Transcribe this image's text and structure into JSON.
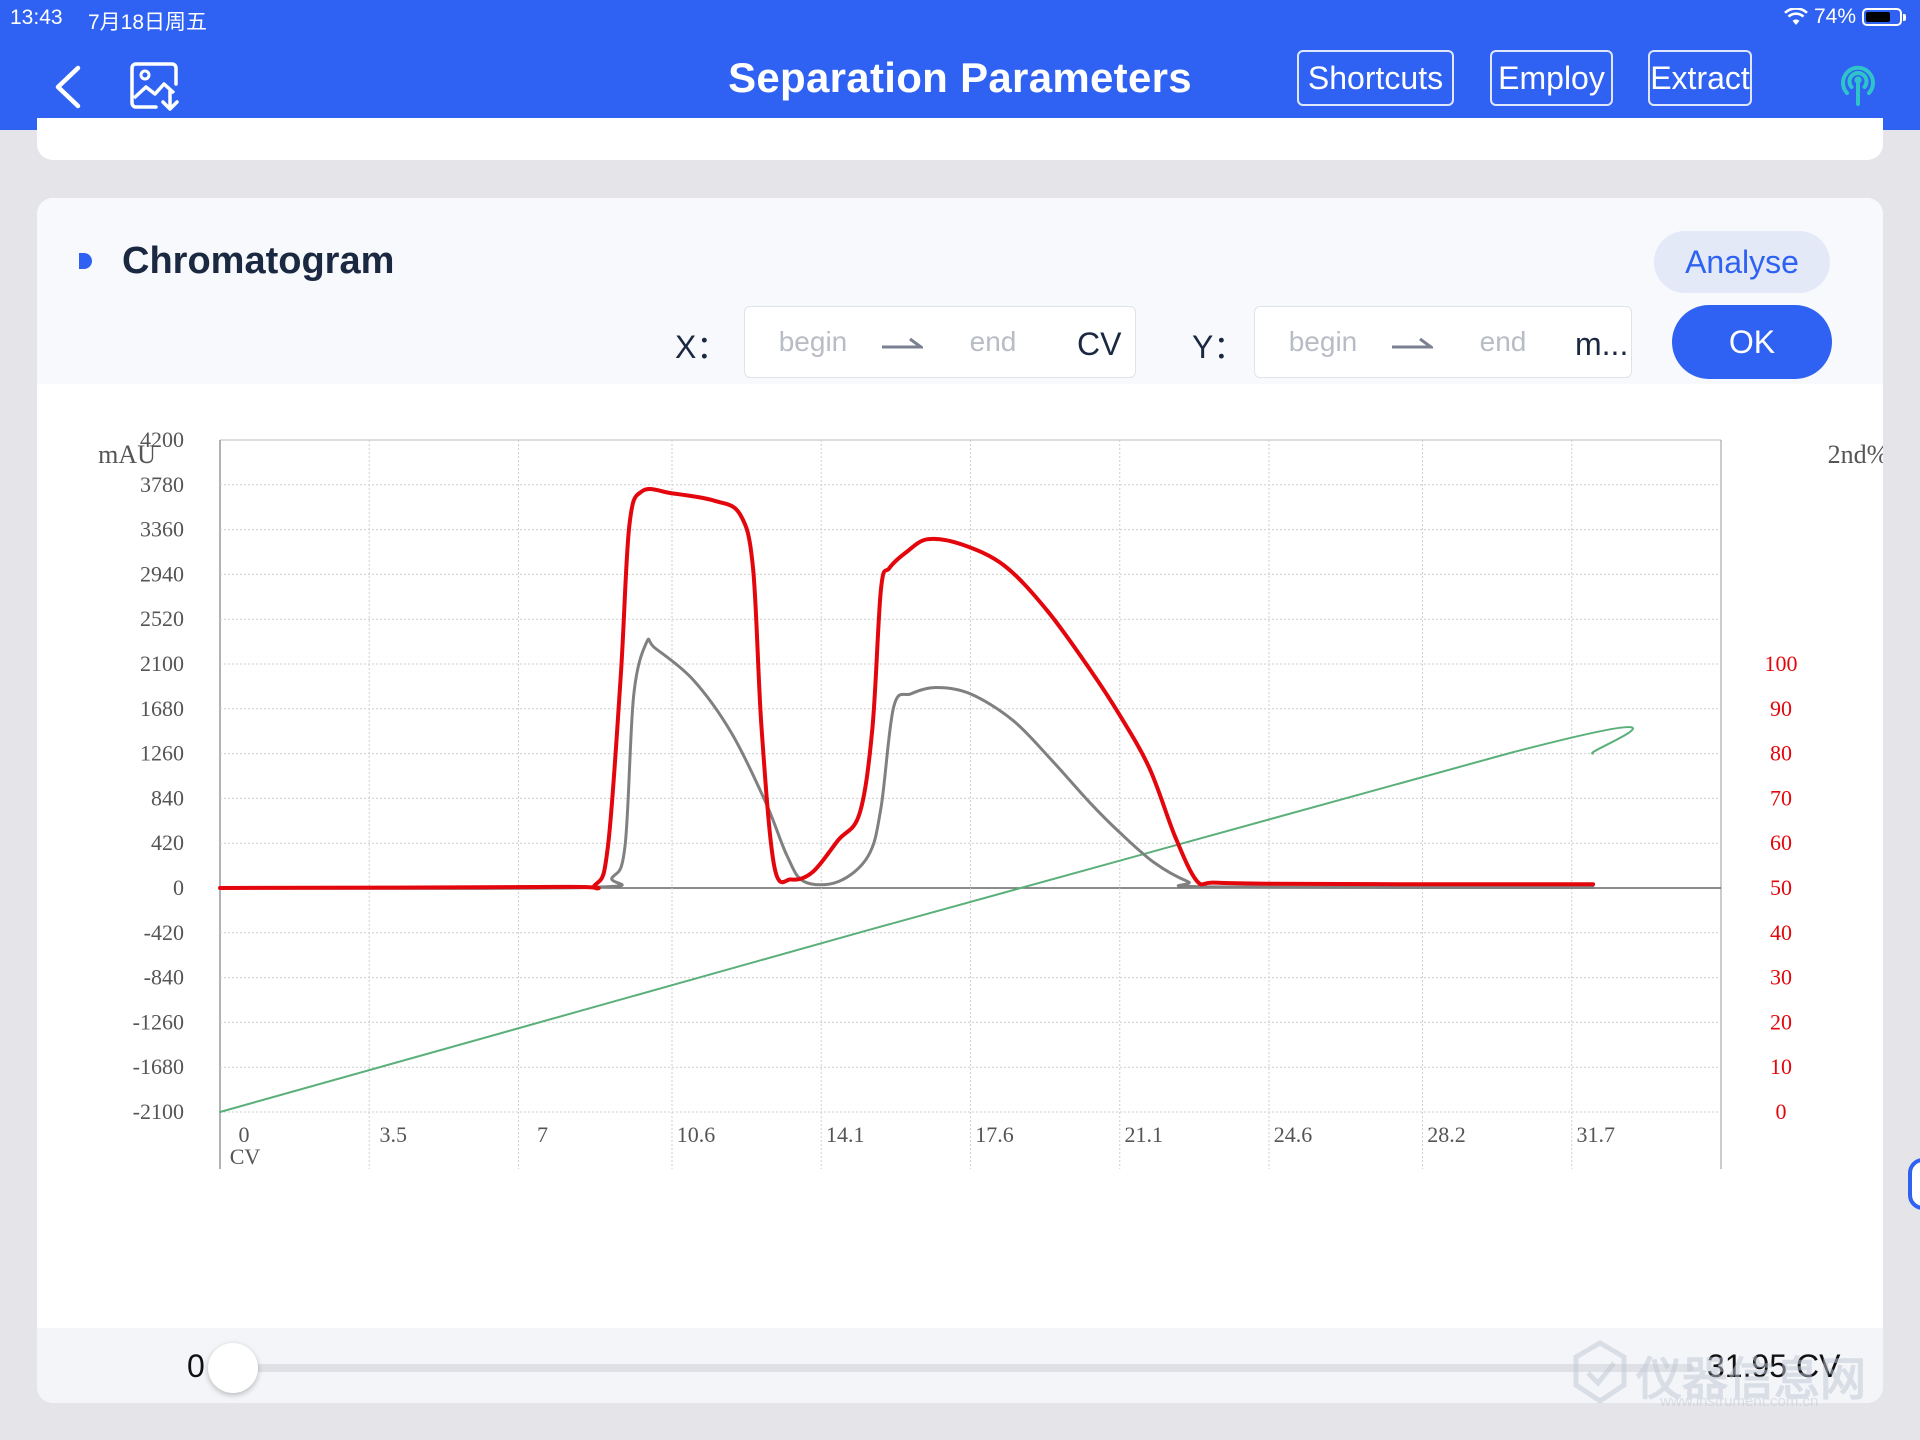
{
  "status_bar": {
    "time": "13:43",
    "date": "7月18日周五",
    "battery": "74%",
    "battery_level": 0.74
  },
  "header": {
    "title": "Separation Parameters",
    "buttons": {
      "shortcuts": "Shortcuts",
      "employ": "Employ",
      "extract": "Extract"
    }
  },
  "chromatogram": {
    "title": "Chromatogram",
    "analyse_label": "Analyse",
    "x_range": {
      "label": "X：",
      "begin_placeholder": "begin",
      "end_placeholder": "end",
      "unit": "CV"
    },
    "y_range": {
      "label": "Y：",
      "begin_placeholder": "begin",
      "end_placeholder": "end",
      "unit": "m..."
    },
    "ok_label": "OK"
  },
  "slider": {
    "min_label": "0",
    "max_label": "31.95 CV",
    "value": 0
  },
  "watermark": {
    "text": "仪器信息网",
    "sub": "www.instrument.com.cn"
  },
  "colors": {
    "accent": "#2f62f2",
    "uv_curve": "#e3060c",
    "uv2_curve": "#808080",
    "gradient": "#5bb07a"
  },
  "chart_data": {
    "type": "line",
    "xlabel": "CV",
    "ylabel": "mAU",
    "y2label": "2nd%",
    "x_ticks": [
      "0",
      "3.5",
      "7",
      "10.6",
      "14.1",
      "17.6",
      "21.1",
      "24.6",
      "28.2",
      "31.7"
    ],
    "y_ticks": [
      "4200",
      "3780",
      "3360",
      "2940",
      "2520",
      "2100",
      "1680",
      "1260",
      "840",
      "420",
      "0",
      "-420",
      "-840",
      "-1260",
      "-1680",
      "-2100"
    ],
    "y2_ticks": [
      "100",
      "90",
      "80",
      "70",
      "60",
      "50",
      "40",
      "30",
      "20",
      "10",
      "0"
    ],
    "xlim": [
      0,
      35.2
    ],
    "ylim": [
      -2100,
      4200
    ],
    "y2lim": [
      0,
      100
    ],
    "grid": true,
    "series": [
      {
        "color": "#e3060c",
        "axis": "left",
        "width": 4,
        "points": [
          [
            0,
            0
          ],
          [
            8,
            10
          ],
          [
            8.8,
            30
          ],
          [
            9.1,
            400
          ],
          [
            9.4,
            2000
          ],
          [
            9.6,
            3400
          ],
          [
            9.9,
            3720
          ],
          [
            10.6,
            3700
          ],
          [
            11.6,
            3630
          ],
          [
            12.2,
            3500
          ],
          [
            12.5,
            3000
          ],
          [
            12.7,
            1500
          ],
          [
            13,
            200
          ],
          [
            13.4,
            80
          ],
          [
            13.9,
            150
          ],
          [
            14.5,
            450
          ],
          [
            15,
            700
          ],
          [
            15.3,
            1500
          ],
          [
            15.5,
            2800
          ],
          [
            15.7,
            3000
          ],
          [
            16.1,
            3150
          ],
          [
            16.6,
            3270
          ],
          [
            17.4,
            3220
          ],
          [
            18.4,
            3020
          ],
          [
            19.4,
            2600
          ],
          [
            20.4,
            2050
          ],
          [
            21.1,
            1620
          ],
          [
            21.8,
            1120
          ],
          [
            22.4,
            480
          ],
          [
            22.9,
            70
          ],
          [
            23.3,
            50
          ],
          [
            24.6,
            40
          ],
          [
            28.2,
            35
          ],
          [
            32.2,
            35
          ]
        ]
      },
      {
        "color": "#808080",
        "axis": "left",
        "width": 3,
        "points": [
          [
            0,
            0
          ],
          [
            8.6,
            5
          ],
          [
            9.2,
            100
          ],
          [
            9.5,
            400
          ],
          [
            9.7,
            1800
          ],
          [
            10,
            2300
          ],
          [
            10.2,
            2250
          ],
          [
            11.1,
            1950
          ],
          [
            12,
            1450
          ],
          [
            12.8,
            800
          ],
          [
            13.3,
            300
          ],
          [
            13.7,
            60
          ],
          [
            14.5,
            60
          ],
          [
            15.2,
            300
          ],
          [
            15.5,
            750
          ],
          [
            15.8,
            1700
          ],
          [
            16.2,
            1820
          ],
          [
            16.8,
            1880
          ],
          [
            17.6,
            1820
          ],
          [
            18.6,
            1570
          ],
          [
            19.5,
            1200
          ],
          [
            20.4,
            800
          ],
          [
            21.1,
            520
          ],
          [
            21.9,
            240
          ],
          [
            22.7,
            60
          ],
          [
            23.3,
            10
          ],
          [
            32.2,
            5
          ]
        ]
      },
      {
        "color": "#5bb07a",
        "axis": "right",
        "width": 2,
        "points": [
          [
            0,
            0
          ],
          [
            30.2,
            80
          ],
          [
            32.2,
            80
          ]
        ]
      }
    ]
  }
}
